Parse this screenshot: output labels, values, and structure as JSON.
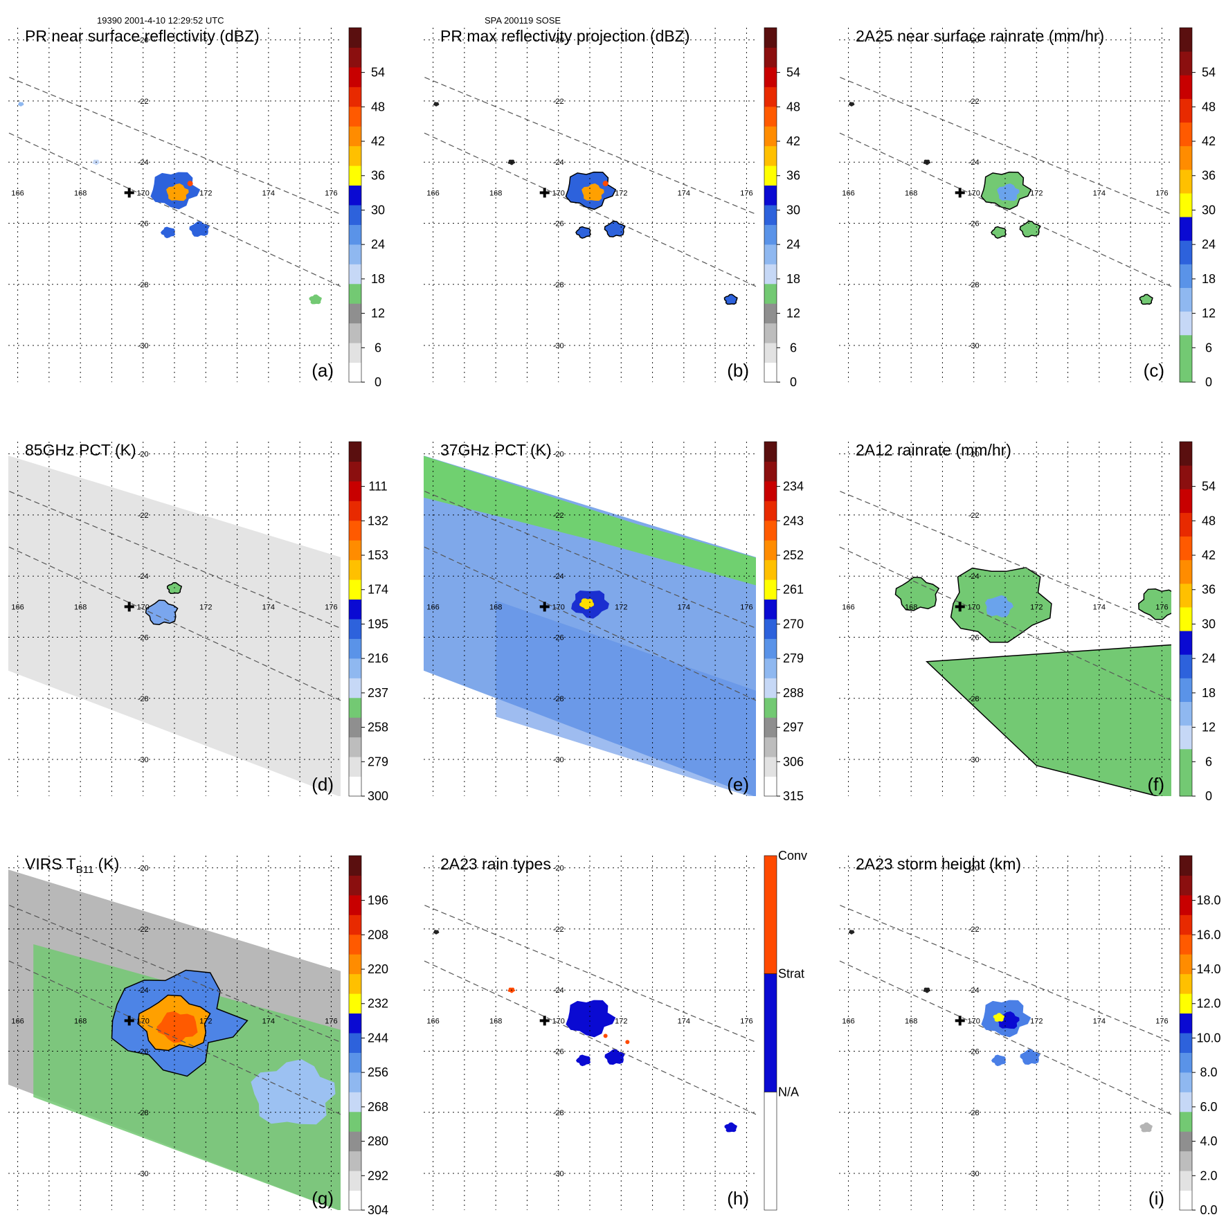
{
  "header": {
    "left": "19390 2001-4-10 12:29:52 UTC",
    "center": "SPA 200119 SOSE"
  },
  "colors": {
    "palette": [
      "#ffffff",
      "#e8e8e8",
      "#cfcfcf",
      "#b4b4b4",
      "#9a9a9a",
      "#7fcf7f",
      "#6fc86f",
      "#c6d8f6",
      "#9cc1f2",
      "#6aa3ec",
      "#3f7fe3",
      "#1e4fd8",
      "#0a0ad2",
      "#ffff00",
      "#ffd21e",
      "#ffa000",
      "#ff7800",
      "#ff4a00",
      "#e82a00",
      "#c80000",
      "#9c0e0e",
      "#5a0f0f"
    ],
    "map_green": "#70d070",
    "map_blue": "#2e6fe6",
    "map_yellow": "#ffdd00",
    "map_gray": "#e4e4e4"
  },
  "chart_data": [
    {
      "id": "a",
      "type": "heatmap",
      "title": "PR near surface reflectivity (dBZ)",
      "panel_label": "(a)",
      "colorbar": {
        "ticks": [
          "0",
          "6",
          "12",
          "18",
          "24",
          "30",
          "36",
          "42",
          "48",
          "54"
        ],
        "scale": "gray-green-blue-yellow-red",
        "range": [
          0,
          60
        ]
      },
      "x_ticks": [
        "166",
        "168",
        "170",
        "172",
        "174",
        "176"
      ],
      "y_ticks": [
        "-20",
        "-22",
        "-24",
        "-26",
        "-28",
        "-30"
      ],
      "center_marker": {
        "lon": 170,
        "lat": -25
      },
      "swath": "pr"
    },
    {
      "id": "b",
      "type": "heatmap",
      "title": "PR max reflectivity projection (dBZ)",
      "panel_label": "(b)",
      "colorbar": {
        "ticks": [
          "0",
          "6",
          "12",
          "18",
          "24",
          "30",
          "36",
          "42",
          "48",
          "54"
        ],
        "scale": "gray-green-blue-yellow-red",
        "range": [
          0,
          60
        ]
      },
      "x_ticks": [
        "166",
        "168",
        "170",
        "172",
        "174",
        "176"
      ],
      "y_ticks": [
        "-20",
        "-22",
        "-24",
        "-26",
        "-28",
        "-30"
      ],
      "center_marker": {
        "lon": 170,
        "lat": -25
      },
      "swath": "pr"
    },
    {
      "id": "c",
      "type": "heatmap",
      "title": "2A25 near surface rainrate (mm/hr)",
      "panel_label": "(c)",
      "colorbar": {
        "ticks": [
          "0",
          "6",
          "12",
          "18",
          "24",
          "30",
          "36",
          "42",
          "48",
          "54"
        ],
        "scale": "green-blue-yellow-red",
        "range": [
          0,
          60
        ]
      },
      "x_ticks": [
        "166",
        "168",
        "170",
        "172",
        "174",
        "176"
      ],
      "y_ticks": [
        "-20",
        "-22",
        "-24",
        "-26",
        "-28",
        "-30"
      ],
      "center_marker": {
        "lon": 170,
        "lat": -25
      },
      "swath": "pr"
    },
    {
      "id": "d",
      "type": "heatmap",
      "title": "85GHz PCT (K)",
      "panel_label": "(d)",
      "colorbar": {
        "ticks": [
          "300",
          "279",
          "258",
          "237",
          "216",
          "195",
          "174",
          "153",
          "132",
          "111"
        ],
        "scale": "gray-green-blue-yellow-red",
        "range": [
          300,
          90
        ]
      },
      "x_ticks": [
        "166",
        "168",
        "170",
        "172",
        "174",
        "176"
      ],
      "y_ticks": [
        "-20",
        "-22",
        "-24",
        "-26",
        "-28",
        "-30"
      ],
      "center_marker": {
        "lon": 170,
        "lat": -25
      },
      "swath": "tmi"
    },
    {
      "id": "e",
      "type": "heatmap",
      "title": "37GHz PCT (K)",
      "panel_label": "(e)",
      "colorbar": {
        "ticks": [
          "315",
          "306",
          "297",
          "288",
          "279",
          "270",
          "261",
          "252",
          "243",
          "234"
        ],
        "scale": "gray-green-blue-yellow-red",
        "range": [
          315,
          225
        ]
      },
      "x_ticks": [
        "166",
        "168",
        "170",
        "172",
        "174",
        "176"
      ],
      "y_ticks": [
        "-20",
        "-22",
        "-24",
        "-26",
        "-28",
        "-30"
      ],
      "center_marker": {
        "lon": 170,
        "lat": -25
      },
      "swath": "tmi"
    },
    {
      "id": "f",
      "type": "heatmap",
      "title": "2A12 rainrate (mm/hr)",
      "panel_label": "(f)",
      "colorbar": {
        "ticks": [
          "0",
          "6",
          "12",
          "18",
          "24",
          "30",
          "36",
          "42",
          "48",
          "54"
        ],
        "scale": "green-blue-yellow-red",
        "range": [
          0,
          60
        ]
      },
      "x_ticks": [
        "166",
        "168",
        "170",
        "172",
        "174",
        "176"
      ],
      "y_ticks": [
        "-20",
        "-22",
        "-24",
        "-26",
        "-28",
        "-30"
      ],
      "center_marker": {
        "lon": 170,
        "lat": -25
      },
      "swath": "tmi"
    },
    {
      "id": "g",
      "type": "heatmap",
      "title_main": "VIRS T",
      "title_sub": "B11",
      "title_tail": " (K)",
      "panel_label": "(g)",
      "colorbar": {
        "ticks": [
          "304",
          "292",
          "280",
          "268",
          "256",
          "244",
          "232",
          "220",
          "208",
          "196"
        ],
        "scale": "gray-green-blue-yellow-red",
        "range": [
          304,
          184
        ]
      },
      "x_ticks": [
        "166",
        "168",
        "170",
        "172",
        "174",
        "176"
      ],
      "y_ticks": [
        "-20",
        "-22",
        "-24",
        "-26",
        "-28",
        "-30"
      ],
      "center_marker": {
        "lon": 170,
        "lat": -25
      },
      "swath": "virs"
    },
    {
      "id": "h",
      "type": "heatmap",
      "title": "2A23 rain types",
      "panel_label": "(h)",
      "colorbar": {
        "categories": [
          "N/A",
          "Strat",
          "Conv"
        ],
        "colors": [
          "#ffffff",
          "#0a0ad2",
          "#ff4a00"
        ]
      },
      "x_ticks": [
        "166",
        "168",
        "170",
        "172",
        "174",
        "176"
      ],
      "y_ticks": [
        "-20",
        "-22",
        "-24",
        "-26",
        "-28",
        "-30"
      ],
      "center_marker": {
        "lon": 170,
        "lat": -25
      },
      "swath": "pr"
    },
    {
      "id": "i",
      "type": "heatmap",
      "title": "2A23 storm height (km)",
      "panel_label": "(i)",
      "colorbar": {
        "ticks": [
          "0.0",
          "2.0",
          "4.0",
          "6.0",
          "8.0",
          "10.0",
          "12.0",
          "14.0",
          "16.0",
          "18.0"
        ],
        "scale": "gray-green-blue-yellow-red",
        "range": [
          0,
          20
        ]
      },
      "x_ticks": [
        "166",
        "168",
        "170",
        "172",
        "174",
        "176"
      ],
      "y_ticks": [
        "-20",
        "-22",
        "-24",
        "-26",
        "-28",
        "-30"
      ],
      "center_marker": {
        "lon": 170,
        "lat": -25
      },
      "swath": "pr"
    }
  ]
}
